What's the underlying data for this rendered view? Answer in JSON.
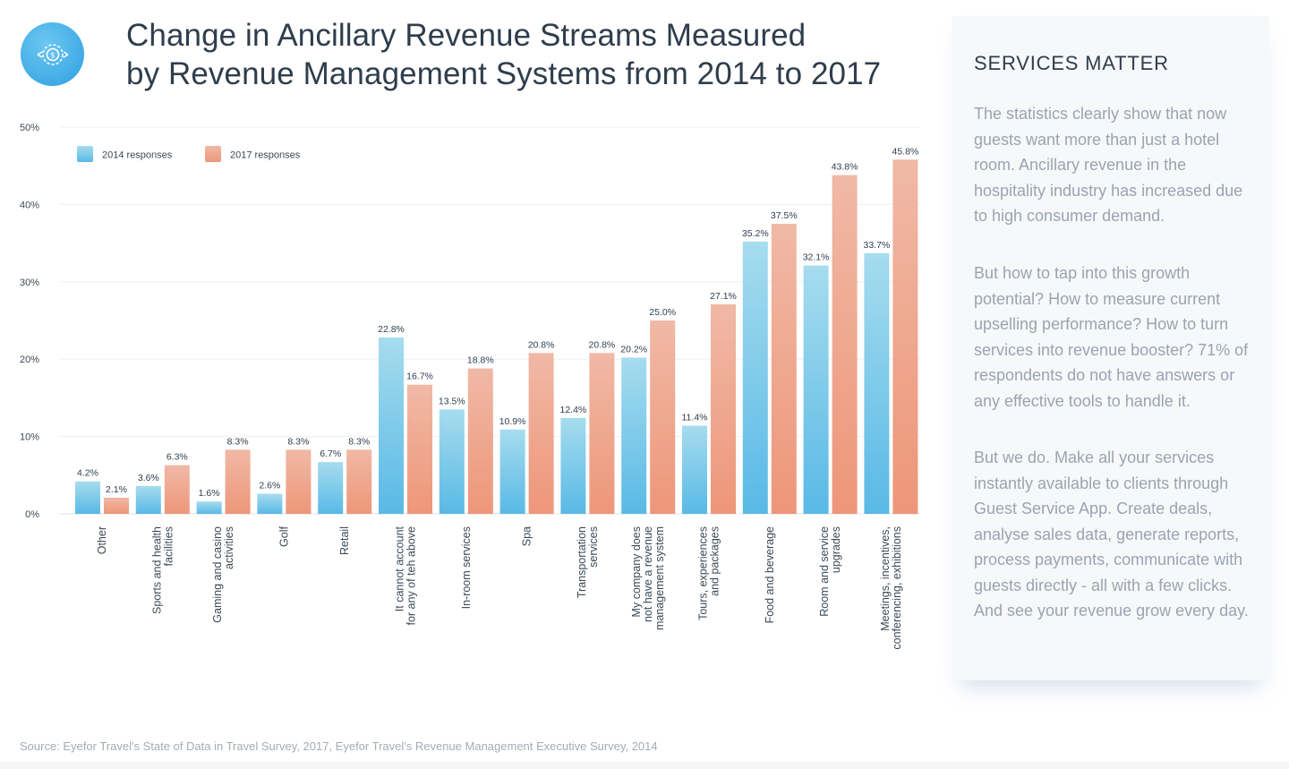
{
  "header": {
    "title_line1": "Change in Ancillary Revenue Streams Measured",
    "title_line2": "by Revenue Management Systems from 2014 to 2017",
    "logo_icon": "gear-dollar-icon"
  },
  "chart_data": {
    "type": "bar",
    "title": "Change in Ancillary Revenue Streams Measured by Revenue Management Systems from 2014 to 2017",
    "ylim": [
      0,
      50
    ],
    "yticks": [
      "0%",
      "10%",
      "20%",
      "30%",
      "40%",
      "50%"
    ],
    "grid": true,
    "legend_position": "top-left",
    "categories": [
      [
        "Other"
      ],
      [
        "Sports and health",
        "facilities"
      ],
      [
        "Gaming and casino",
        "activities"
      ],
      [
        "Golf"
      ],
      [
        "Retail"
      ],
      [
        "It cannot account",
        "for any of teh above"
      ],
      [
        "In-room services"
      ],
      [
        "Spa"
      ],
      [
        "Transportation",
        "services"
      ],
      [
        "My company does",
        "not have a revenue",
        "management system"
      ],
      [
        "Tours, experiences",
        "and packages"
      ],
      [
        "Food and beverage"
      ],
      [
        "Room and service",
        "upgrades"
      ],
      [
        "Meetings, incentives,",
        "conferencing, exhibitions"
      ]
    ],
    "series": [
      {
        "name": "2014 responses",
        "color": "#59b9e6",
        "values": [
          4.2,
          3.6,
          1.6,
          2.6,
          6.7,
          22.8,
          13.5,
          10.9,
          12.4,
          20.2,
          11.4,
          35.2,
          32.1,
          33.7
        ],
        "labels": [
          "4.2%",
          "3.6%",
          "1.6%",
          "2.6%",
          "6.7%",
          "22.8%",
          "13.5%",
          "10.9%",
          "12.4%",
          "20.2%",
          "11.4%",
          "35.2%",
          "32.1%",
          "33.7%"
        ]
      },
      {
        "name": "2017 responses",
        "color": "#ee9679",
        "values": [
          2.1,
          6.3,
          8.3,
          8.3,
          8.3,
          16.7,
          18.8,
          20.8,
          20.8,
          25.0,
          27.1,
          37.5,
          43.8,
          45.8
        ],
        "labels": [
          "2.1%",
          "6.3%",
          "8.3%",
          "8.3%",
          "8.3%",
          "16.7%",
          "18.8%",
          "20.8%",
          "20.8%",
          "25.0%",
          "27.1%",
          "37.5%",
          "43.8%",
          "45.8%"
        ]
      }
    ]
  },
  "sidebar": {
    "title": "SERVICES MATTER",
    "paragraph_1": "The statistics clearly show that now guests want more than just a hotel room. Ancillary revenue in the hospitality industry has increased due to high consumer demand.",
    "paragraph_2": "But how to tap into this growth potential? How to measure current upselling performance? How to turn services into revenue booster? 71% of respondents do not have answers or any effective tools to handle it.",
    "paragraph_3": "But we do. Make all your services instantly available to clients through Guest Service App. Create deals, analyse sales data, generate reports, process payments, communicate with guests directly - all with a few clicks. And see your revenue grow every day."
  },
  "footer": {
    "source": "Source: Eyefor Travel's State of Data in Travel Survey, 2017, Eyefor Travel's Revenue Management Executive Survey, 2014"
  }
}
